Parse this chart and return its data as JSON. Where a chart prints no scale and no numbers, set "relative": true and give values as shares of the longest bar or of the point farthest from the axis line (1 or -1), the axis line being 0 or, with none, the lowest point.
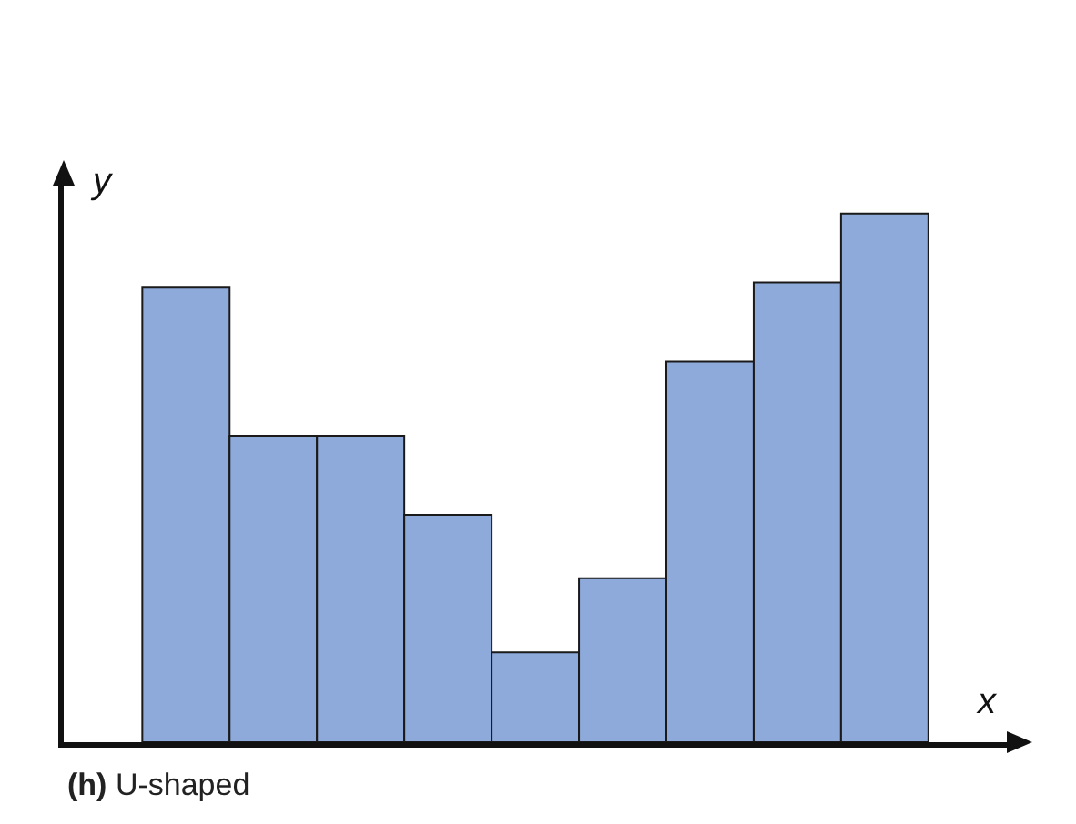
{
  "chart_data": {
    "type": "bar",
    "relative": true,
    "xlabel": "x",
    "ylabel": "y",
    "annotations": [
      "(h) U-shaped"
    ],
    "categories": [
      null,
      null,
      null,
      null,
      null,
      null,
      null,
      null,
      null
    ],
    "values": [
      0.86,
      0.58,
      0.58,
      0.43,
      0.17,
      0.31,
      0.72,
      0.87,
      1
    ],
    "color": "#8eaadb"
  }
}
